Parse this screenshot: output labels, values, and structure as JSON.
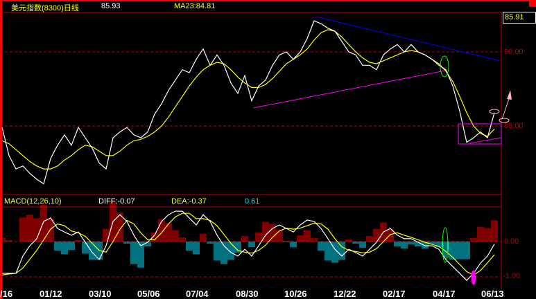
{
  "header": {
    "title": "美元指数(8300)日线",
    "close": "85.93",
    "ma": "MA23:84.81",
    "last_price_box": "85.91"
  },
  "macd_header": {
    "name": "MACD(12,26,10)",
    "diff": "DIFF:-0.07",
    "dea": "DEA:-0.37",
    "macd": "0.61"
  },
  "price_axis": {
    "labels": [
      "90.00",
      "85.00"
    ]
  },
  "macd_axis": {
    "labels": [
      "0.00",
      "-1.00"
    ]
  },
  "dates": [
    "/16",
    "01/12",
    "03/10",
    "05/06",
    "07/04",
    "08/30",
    "10/26",
    "12/22",
    "02/17",
    "04/17",
    "06/13"
  ],
  "colors": {
    "price": "#ffffff",
    "ma": "#ffff00",
    "macd_pos": "#ff0000",
    "macd_neg": "#00e5ff",
    "grid": "#c00000",
    "trend_upper": "#0000ff",
    "trend_lower": "#ff00ff"
  },
  "chart_data": [
    {
      "type": "line",
      "title": "美元指数(8300)日线",
      "ylim": [
        81,
        92.5
      ],
      "grid_lines": [
        90,
        85
      ],
      "series": [
        {
          "name": "close",
          "values": [
            84.9,
            83.0,
            82.1,
            82.3,
            81.8,
            81.4,
            81.1,
            82.8,
            83.7,
            84.4,
            83.7,
            84.9,
            84.2,
            83.5,
            82.5,
            82.1,
            84.2,
            84.6,
            84.9,
            84.4,
            84.2,
            84.6,
            85.8,
            86.5,
            87.4,
            88.1,
            88.8,
            88.6,
            89.5,
            90.2,
            89.1,
            89.8,
            89.1,
            87.9,
            87.2,
            88.4,
            86.7,
            87.7,
            88.1,
            89.1,
            89.8,
            90.0,
            89.5,
            90.0,
            90.9,
            92.1,
            91.9,
            91.6,
            91.4,
            90.7,
            90.0,
            89.8,
            89.1,
            89.1,
            88.8,
            89.8,
            90.2,
            90.5,
            90.0,
            90.5,
            90.0,
            89.8,
            89.5,
            89.1,
            88.8,
            87.7,
            86.0,
            83.9,
            84.2,
            84.6,
            84.2,
            85.9
          ]
        },
        {
          "name": "MA23",
          "values": [
            84.0,
            83.8,
            83.4,
            83.0,
            82.6,
            82.3,
            82.1,
            82.1,
            82.3,
            82.7,
            83.0,
            83.4,
            83.7,
            83.6,
            83.3,
            83.0,
            83.0,
            83.3,
            83.7,
            84.0,
            84.1,
            84.3,
            84.6,
            85.0,
            85.6,
            86.3,
            87.0,
            87.7,
            88.3,
            88.8,
            89.1,
            89.3,
            89.2,
            88.8,
            88.3,
            87.9,
            87.6,
            87.6,
            87.8,
            88.2,
            88.7,
            89.2,
            89.5,
            89.8,
            90.2,
            90.8,
            91.3,
            91.5,
            91.4,
            91.0,
            90.5,
            90.0,
            89.6,
            89.3,
            89.2,
            89.4,
            89.6,
            89.8,
            90.0,
            90.1,
            90.0,
            89.8,
            89.5,
            89.2,
            88.7,
            88.0,
            87.0,
            85.9,
            85.0,
            84.5,
            84.3,
            84.8
          ]
        }
      ]
    },
    {
      "type": "bar",
      "title": "MACD(12,26,10)",
      "ylim": [
        -1.2,
        1.0
      ],
      "grid_lines": [
        0,
        -1
      ],
      "series": [
        {
          "name": "DIFF",
          "values": [
            -0.9,
            -0.9,
            -0.9,
            -0.41,
            -0.12,
            0.08,
            0.57,
            0.67,
            0.37,
            0.27,
            0.18,
            0.27,
            -0.02,
            -0.31,
            -0.51,
            -0.12,
            0.57,
            0.76,
            0.57,
            0.18,
            -0.12,
            -0.02,
            0.18,
            0.57,
            0.76,
            0.86,
            0.86,
            0.67,
            0.47,
            0.76,
            0.57,
            0.18,
            -0.12,
            -0.31,
            -0.41,
            -0.22,
            -0.41,
            -0.12,
            0.18,
            0.37,
            0.47,
            0.37,
            0.27,
            0.47,
            0.61,
            0.57,
            0.37,
            0.08,
            -0.22,
            -0.41,
            -0.22,
            -0.31,
            -0.41,
            -0.22,
            -0.02,
            0.27,
            0.37,
            0.18,
            0.08,
            0.08,
            -0.02,
            -0.12,
            -0.12,
            -0.22,
            -0.51,
            -0.71,
            -0.9,
            -1.1,
            -0.9,
            -0.61,
            -0.41,
            -0.07
          ]
        },
        {
          "name": "DEA",
          "values": [
            -0.95,
            -0.92,
            -0.9,
            -0.75,
            -0.5,
            -0.25,
            0.05,
            0.35,
            0.5,
            0.45,
            0.3,
            0.25,
            0.15,
            -0.05,
            -0.25,
            -0.3,
            0.0,
            0.35,
            0.6,
            0.5,
            0.25,
            0.05,
            0.05,
            0.25,
            0.5,
            0.7,
            0.8,
            0.8,
            0.65,
            0.65,
            0.6,
            0.45,
            0.2,
            -0.05,
            -0.25,
            -0.3,
            -0.33,
            -0.25,
            -0.1,
            0.12,
            0.3,
            0.38,
            0.35,
            0.38,
            0.45,
            0.52,
            0.5,
            0.35,
            0.08,
            -0.15,
            -0.25,
            -0.28,
            -0.32,
            -0.3,
            -0.2,
            0.0,
            0.2,
            0.25,
            0.18,
            0.12,
            0.05,
            -0.02,
            -0.08,
            -0.14,
            -0.28,
            -0.45,
            -0.65,
            -0.85,
            -0.95,
            -0.82,
            -0.6,
            -0.37
          ]
        }
      ]
    }
  ]
}
